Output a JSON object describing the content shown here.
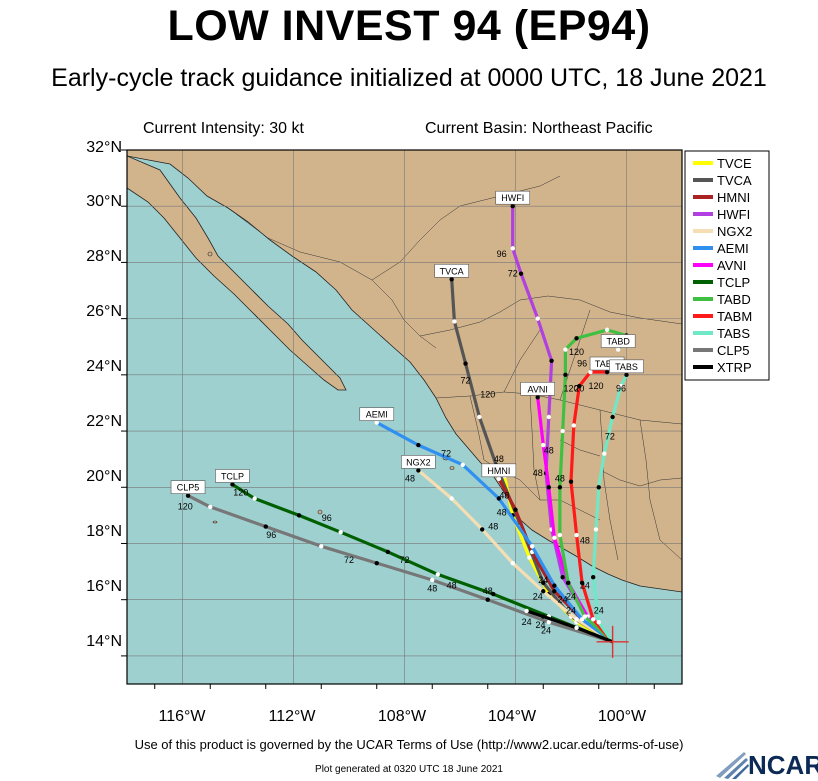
{
  "title": "LOW INVEST 94 (EP94)",
  "subtitle": "Early-cycle track guidance initialized at 0000 UTC, 18 June 2021",
  "current_intensity": "Current Intensity: 30 kt",
  "current_basin": "Current Basin: Northeast Pacific",
  "terms": "Use of this product is governed by the UCAR Terms of Use (http://www2.ucar.edu/terms-of-use)",
  "generated": "Plot generated at 0320 UTC   18 June 2021",
  "ncar_logo": "NCAR",
  "colors": {
    "ocean": "#9fd0d0",
    "land": "#d2b48c",
    "storm_marker": "#e03030"
  },
  "chart_data": {
    "type": "line",
    "xlim": [
      -118,
      -98
    ],
    "ylim": [
      13,
      32
    ],
    "x_ticks": [
      -116,
      -112,
      -108,
      -104,
      -100
    ],
    "x_tick_labels": [
      "116°W",
      "112°W",
      "108°W",
      "104°W",
      "100°W"
    ],
    "y_ticks": [
      14,
      16,
      18,
      20,
      22,
      24,
      26,
      28,
      30,
      32
    ],
    "y_tick_labels": [
      "14°N",
      "16°N",
      "18°N",
      "20°N",
      "22°N",
      "24°N",
      "26°N",
      "28°N",
      "30°N",
      "32°N"
    ],
    "grid": true,
    "legend_position": "top-right",
    "initial_position": [
      -100.5,
      14.5
    ],
    "series": [
      {
        "name": "TVCE",
        "color": "#ffff00",
        "label_text": "",
        "points": [
          [
            -100.5,
            14.5
          ],
          [
            -101.8,
            15.2
          ],
          [
            -102.8,
            16.2
          ],
          [
            -103.5,
            17.5
          ],
          [
            -104.1,
            19.0
          ],
          [
            -104.4,
            20.4
          ]
        ]
      },
      {
        "name": "TVCA",
        "color": "#555555",
        "label_text": "TVCA",
        "points": [
          [
            -100.5,
            14.5
          ],
          [
            -102.0,
            15.4
          ],
          [
            -103.0,
            16.6
          ],
          [
            -103.8,
            18.6
          ],
          [
            -104.7,
            20.8
          ],
          [
            -105.3,
            22.5
          ],
          [
            -105.8,
            24.4
          ],
          [
            -106.2,
            25.9
          ],
          [
            -106.3,
            27.4
          ]
        ]
      },
      {
        "name": "HMNI",
        "color": "#aa2222",
        "label_text": "HMNI",
        "points": [
          [
            -100.5,
            14.5
          ],
          [
            -101.5,
            15.2
          ],
          [
            -102.6,
            16.3
          ],
          [
            -103.4,
            17.7
          ],
          [
            -104.0,
            19.2
          ],
          [
            -104.6,
            20.3
          ]
        ]
      },
      {
        "name": "HWFI",
        "color": "#b040e0",
        "label_text": "HWFI",
        "points": [
          [
            -100.5,
            14.5
          ],
          [
            -101.5,
            15.5
          ],
          [
            -102.3,
            16.8
          ],
          [
            -102.7,
            18.5
          ],
          [
            -102.9,
            20.5
          ],
          [
            -102.8,
            22.5
          ],
          [
            -102.7,
            24.5
          ],
          [
            -103.2,
            26.0
          ],
          [
            -103.8,
            27.6
          ],
          [
            -104.1,
            28.5
          ],
          [
            -104.1,
            30.0
          ]
        ]
      },
      {
        "name": "NGX2",
        "color": "#f5deb3",
        "label_text": "NGX2",
        "points": [
          [
            -100.5,
            14.5
          ],
          [
            -101.8,
            15.3
          ],
          [
            -103.0,
            16.3
          ],
          [
            -104.1,
            17.3
          ],
          [
            -105.2,
            18.5
          ],
          [
            -106.3,
            19.6
          ],
          [
            -107.5,
            20.6
          ]
        ]
      },
      {
        "name": "AEMI",
        "color": "#3090f0",
        "label_text": "AEMI",
        "points": [
          [
            -100.5,
            14.5
          ],
          [
            -101.6,
            15.3
          ],
          [
            -102.6,
            16.5
          ],
          [
            -103.4,
            17.9
          ],
          [
            -104.6,
            19.6
          ],
          [
            -105.9,
            20.8
          ],
          [
            -107.5,
            21.5
          ],
          [
            -109.0,
            22.3
          ]
        ]
      },
      {
        "name": "AVNI",
        "color": "#ff00ff",
        "label_text": "AVNI",
        "points": [
          [
            -100.5,
            14.5
          ],
          [
            -101.4,
            15.4
          ],
          [
            -102.1,
            16.6
          ],
          [
            -102.6,
            18.2
          ],
          [
            -102.8,
            20.0
          ],
          [
            -103.0,
            21.5
          ],
          [
            -103.2,
            23.2
          ]
        ]
      },
      {
        "name": "TCLP",
        "color": "#006000",
        "label_text": "TCLP",
        "points": [
          [
            -100.5,
            14.5
          ],
          [
            -102.8,
            15.4
          ],
          [
            -104.8,
            16.2
          ],
          [
            -106.8,
            16.9
          ],
          [
            -108.6,
            17.7
          ],
          [
            -110.3,
            18.4
          ],
          [
            -111.8,
            19.0
          ],
          [
            -113.4,
            19.6
          ],
          [
            -114.2,
            20.1
          ]
        ]
      },
      {
        "name": "TABD",
        "color": "#40c040",
        "label_text": "TABD",
        "points": [
          [
            -100.5,
            14.5
          ],
          [
            -101.5,
            15.4
          ],
          [
            -102.1,
            16.6
          ],
          [
            -102.4,
            18.3
          ],
          [
            -102.4,
            20.0
          ],
          [
            -102.3,
            22.0
          ],
          [
            -102.2,
            24.0
          ],
          [
            -102.2,
            24.9
          ],
          [
            -101.8,
            25.3
          ],
          [
            -100.7,
            25.6
          ],
          [
            -100.0,
            25.4
          ],
          [
            -100.3,
            24.9
          ]
        ]
      },
      {
        "name": "TABM",
        "color": "#ff1a1a",
        "label_text": "TABM",
        "points": [
          [
            -100.5,
            14.5
          ],
          [
            -101.2,
            15.3
          ],
          [
            -101.6,
            16.6
          ],
          [
            -101.8,
            18.3
          ],
          [
            -102.0,
            20.2
          ],
          [
            -101.9,
            22.2
          ],
          [
            -101.7,
            23.6
          ],
          [
            -101.3,
            24.1
          ],
          [
            -100.7,
            24.1
          ]
        ]
      },
      {
        "name": "TABS",
        "color": "#70e8c8",
        "label_text": "TABS",
        "points": [
          [
            -100.5,
            14.5
          ],
          [
            -101.0,
            15.2
          ],
          [
            -101.2,
            16.8
          ],
          [
            -101.1,
            18.5
          ],
          [
            -101.0,
            20.0
          ],
          [
            -100.8,
            21.2
          ],
          [
            -100.5,
            22.5
          ],
          [
            -100.2,
            23.6
          ],
          [
            -100.0,
            24.0
          ]
        ]
      },
      {
        "name": "CLP5",
        "color": "#777777",
        "label_text": "CLP5",
        "points": [
          [
            -100.5,
            14.5
          ],
          [
            -102.8,
            15.2
          ],
          [
            -105.0,
            16.0
          ],
          [
            -107.0,
            16.7
          ],
          [
            -109.0,
            17.3
          ],
          [
            -111.0,
            17.9
          ],
          [
            -113.0,
            18.6
          ],
          [
            -115.0,
            19.3
          ],
          [
            -115.8,
            19.7
          ]
        ]
      },
      {
        "name": "XTRP",
        "color": "#000000",
        "label_text": "",
        "points": [
          [
            -100.5,
            14.5
          ],
          [
            -101.8,
            15.0
          ],
          [
            -103.0,
            15.4
          ],
          [
            -103.6,
            15.6
          ]
        ]
      }
    ],
    "hour_labels": [
      {
        "x": -104.1,
        "y": 27.5,
        "text": "72"
      },
      {
        "x": -104.5,
        "y": 28.2,
        "text": "96"
      },
      {
        "x": -105.8,
        "y": 23.7,
        "text": "72"
      },
      {
        "x": -105.0,
        "y": 23.2,
        "text": "120"
      },
      {
        "x": -104.4,
        "y": 19.6,
        "text": "48"
      },
      {
        "x": -104.5,
        "y": 19.0,
        "text": "48"
      },
      {
        "x": -104.6,
        "y": 20.9,
        "text": "48"
      },
      {
        "x": -103.2,
        "y": 20.4,
        "text": "48"
      },
      {
        "x": -102.8,
        "y": 21.2,
        "text": "48"
      },
      {
        "x": -102.4,
        "y": 20.2,
        "text": "48"
      },
      {
        "x": -101.5,
        "y": 18.0,
        "text": "48"
      },
      {
        "x": -100.6,
        "y": 21.7,
        "text": "72"
      },
      {
        "x": -100.2,
        "y": 23.4,
        "text": "96"
      },
      {
        "x": -100.0,
        "y": 25.2,
        "text": "96"
      },
      {
        "x": -102.0,
        "y": 23.4,
        "text": "120"
      },
      {
        "x": -101.1,
        "y": 23.5,
        "text": "120"
      },
      {
        "x": -101.7,
        "y": 23.4,
        "text": "20"
      },
      {
        "x": -101.6,
        "y": 24.3,
        "text": "96"
      },
      {
        "x": -101.8,
        "y": 24.7,
        "text": "120"
      },
      {
        "x": -106.5,
        "y": 21.1,
        "text": "72"
      },
      {
        "x": -107.8,
        "y": 20.2,
        "text": "48"
      },
      {
        "x": -104.8,
        "y": 18.5,
        "text": "48"
      },
      {
        "x": -103.0,
        "y": 16.6,
        "text": "24"
      },
      {
        "x": -102.3,
        "y": 15.9,
        "text": "24"
      },
      {
        "x": -102.0,
        "y": 16.0,
        "text": "24"
      },
      {
        "x": -101.5,
        "y": 16.4,
        "text": "24"
      },
      {
        "x": -101.0,
        "y": 15.5,
        "text": "24"
      },
      {
        "x": -103.6,
        "y": 15.1,
        "text": "24"
      },
      {
        "x": -103.1,
        "y": 15.0,
        "text": "24"
      },
      {
        "x": -102.9,
        "y": 14.8,
        "text": "24"
      },
      {
        "x": -103.2,
        "y": 16.0,
        "text": "24"
      },
      {
        "x": -102.0,
        "y": 15.5,
        "text": "24"
      },
      {
        "x": -106.3,
        "y": 16.4,
        "text": "48"
      },
      {
        "x": -105.0,
        "y": 16.2,
        "text": "48"
      },
      {
        "x": -107.0,
        "y": 16.3,
        "text": "48"
      },
      {
        "x": -110.0,
        "y": 17.3,
        "text": "72"
      },
      {
        "x": -108.0,
        "y": 17.3,
        "text": "72"
      },
      {
        "x": -112.8,
        "y": 18.2,
        "text": "96"
      },
      {
        "x": -110.8,
        "y": 18.8,
        "text": "96"
      },
      {
        "x": -115.9,
        "y": 19.2,
        "text": "120"
      },
      {
        "x": -113.9,
        "y": 19.7,
        "text": "120"
      }
    ]
  }
}
